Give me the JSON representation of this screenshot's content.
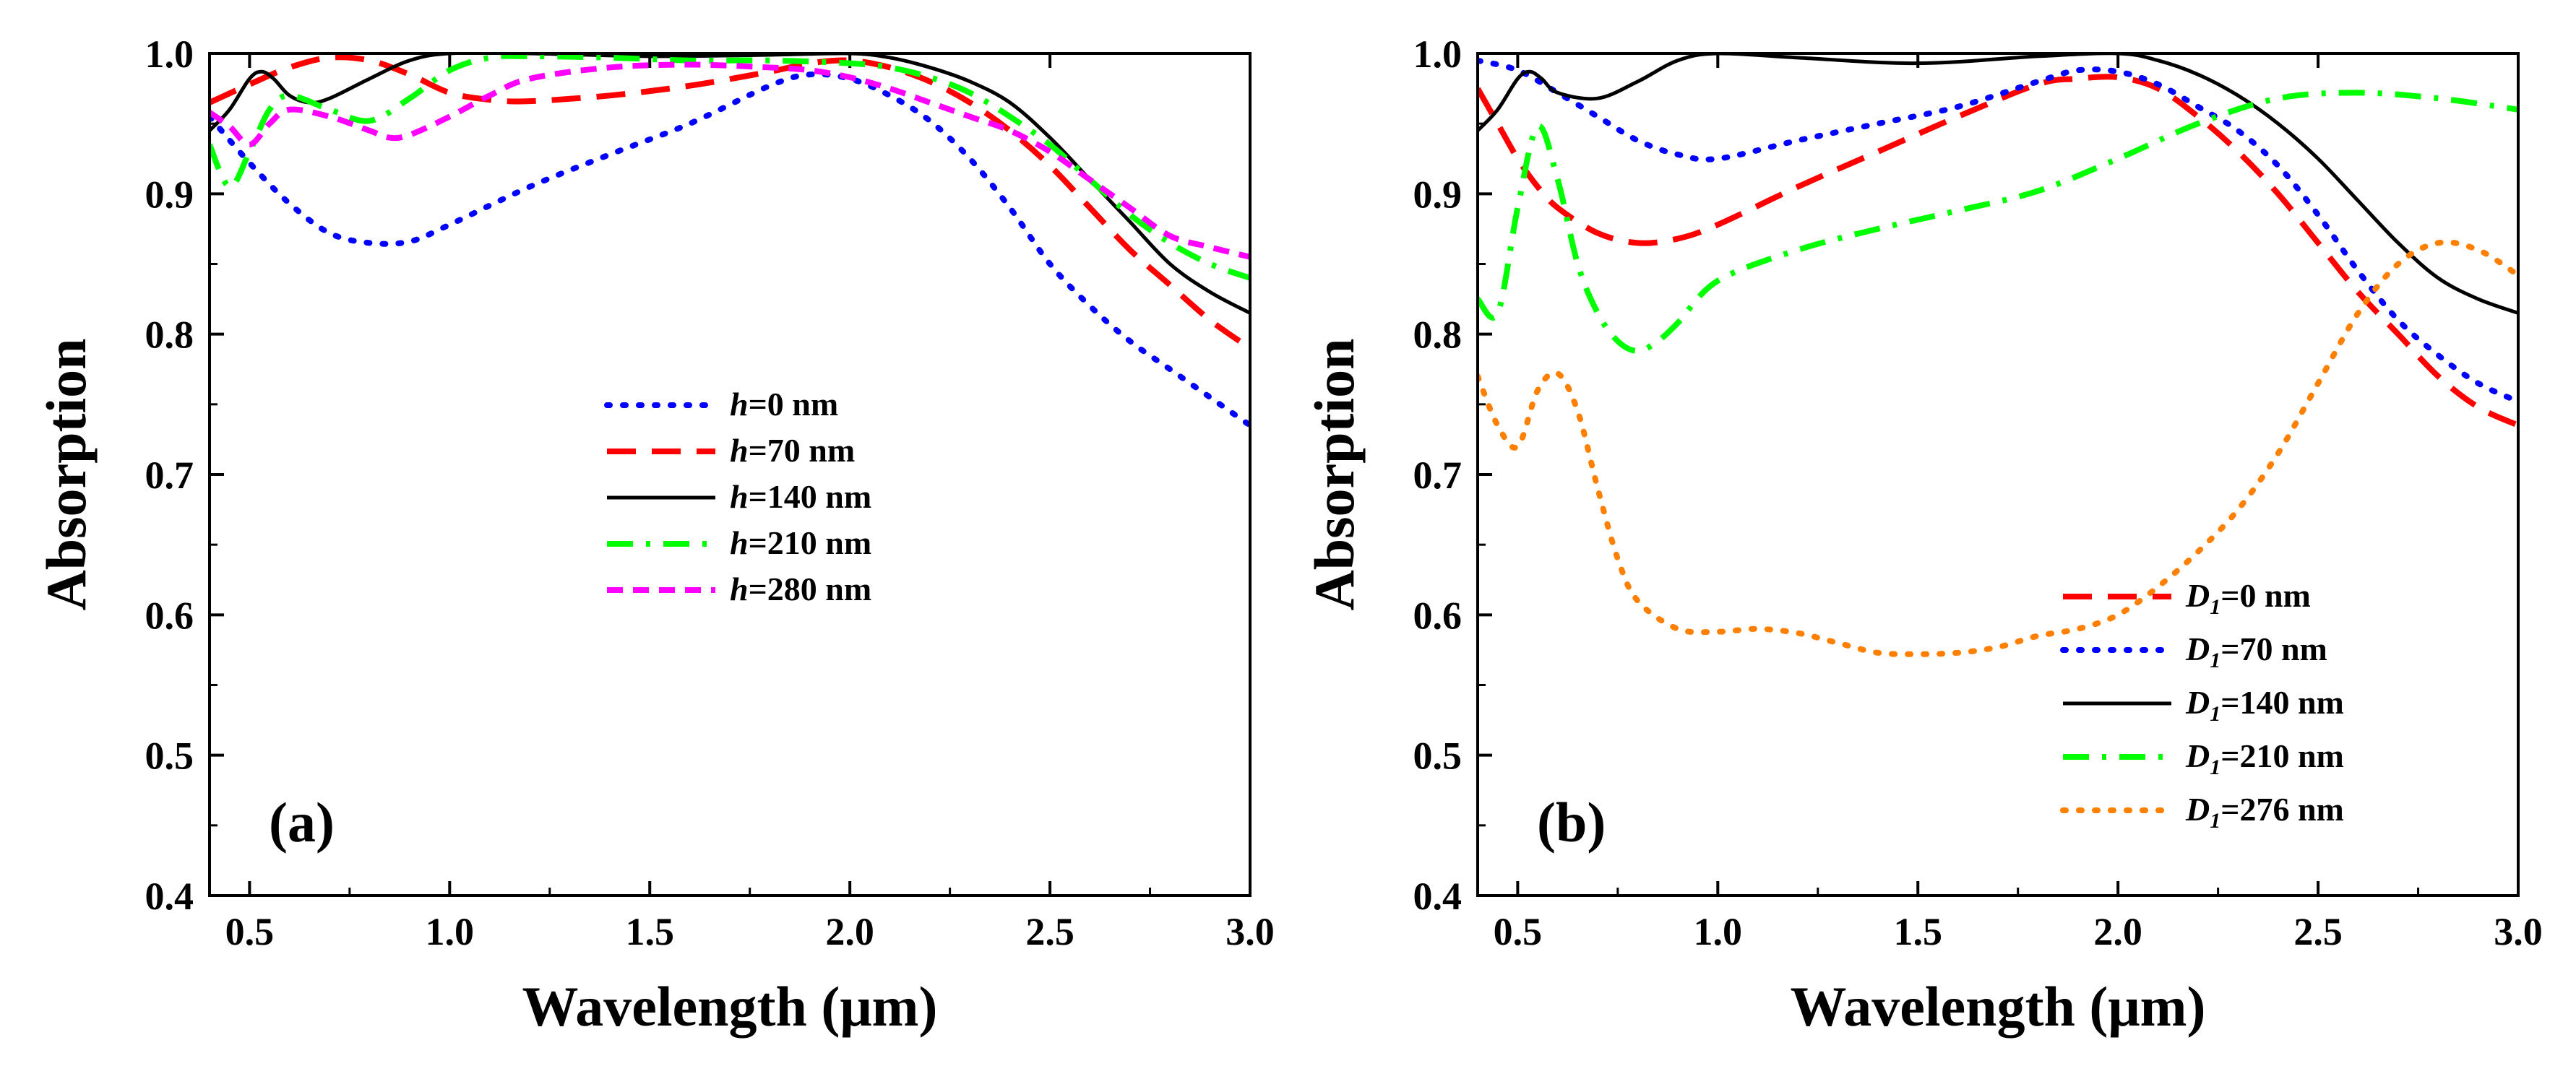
{
  "chart_data": [
    {
      "type": "line",
      "panel_label": "(a)",
      "xlabel": "Wavelength (μm)",
      "ylabel": "Absorption",
      "xlim": [
        0.4,
        3.0
      ],
      "ylim": [
        0.4,
        1.0
      ],
      "xticks": [
        0.5,
        1.0,
        1.5,
        2.0,
        2.5,
        3.0
      ],
      "xtick_labels": [
        "0.5",
        "1.0",
        "1.5",
        "2.0",
        "2.5",
        "3.0"
      ],
      "yticks": [
        0.4,
        0.5,
        0.6,
        0.7,
        0.8,
        0.9,
        1.0
      ],
      "ytick_labels": [
        "0.4",
        "0.5",
        "0.6",
        "0.7",
        "0.8",
        "0.9",
        "1.0"
      ],
      "legend_position": "center-right",
      "series": [
        {
          "name": "h=0 nm",
          "var": "h",
          "suffix": "=0 nm",
          "color": "#0000ff",
          "style": "dot",
          "x": [
            0.4,
            0.5,
            0.6,
            0.7,
            0.8,
            0.9,
            1.0,
            1.2,
            1.4,
            1.6,
            1.8,
            1.9,
            2.0,
            2.1,
            2.2,
            2.3,
            2.4,
            2.5,
            2.6,
            2.7,
            2.8,
            2.9,
            3.0
          ],
          "y": [
            0.955,
            0.922,
            0.893,
            0.872,
            0.865,
            0.866,
            0.878,
            0.905,
            0.928,
            0.95,
            0.977,
            0.985,
            0.982,
            0.97,
            0.952,
            0.925,
            0.89,
            0.85,
            0.82,
            0.795,
            0.775,
            0.755,
            0.735
          ]
        },
        {
          "name": "h=70 nm",
          "var": "h",
          "suffix": "=70 nm",
          "color": "#ff0000",
          "style": "dash",
          "x": [
            0.4,
            0.5,
            0.6,
            0.7,
            0.8,
            0.9,
            1.0,
            1.1,
            1.2,
            1.4,
            1.6,
            1.8,
            1.9,
            2.0,
            2.1,
            2.2,
            2.3,
            2.4,
            2.5,
            2.6,
            2.7,
            2.8,
            2.9,
            3.0
          ],
          "y": [
            0.965,
            0.978,
            0.99,
            0.997,
            0.995,
            0.985,
            0.972,
            0.967,
            0.966,
            0.97,
            0.977,
            0.987,
            0.993,
            0.995,
            0.99,
            0.98,
            0.965,
            0.945,
            0.92,
            0.89,
            0.86,
            0.835,
            0.81,
            0.79
          ]
        },
        {
          "name": "h=140 nm",
          "var": "h",
          "suffix": "=140 nm",
          "color": "#000000",
          "style": "solid",
          "x": [
            0.4,
            0.45,
            0.5,
            0.53,
            0.56,
            0.6,
            0.65,
            0.7,
            0.8,
            0.9,
            1.0,
            1.2,
            1.5,
            1.8,
            2.0,
            2.1,
            2.2,
            2.3,
            2.4,
            2.5,
            2.6,
            2.7,
            2.8,
            2.9,
            3.0
          ],
          "y": [
            0.945,
            0.96,
            0.982,
            0.987,
            0.982,
            0.97,
            0.965,
            0.968,
            0.982,
            0.995,
            1.0,
            1.0,
            0.998,
            0.999,
            1.0,
            0.997,
            0.99,
            0.98,
            0.965,
            0.94,
            0.91,
            0.88,
            0.85,
            0.83,
            0.815
          ]
        },
        {
          "name": "h=210 nm",
          "var": "h",
          "suffix": "=210 nm",
          "color": "#00ff00",
          "style": "dashdot",
          "x": [
            0.4,
            0.45,
            0.5,
            0.55,
            0.6,
            0.7,
            0.8,
            0.9,
            1.0,
            1.1,
            1.2,
            1.4,
            1.6,
            1.8,
            2.0,
            2.1,
            2.2,
            2.3,
            2.4,
            2.5,
            2.6,
            2.7,
            2.8,
            2.9,
            3.0
          ],
          "y": [
            0.935,
            0.905,
            0.93,
            0.96,
            0.97,
            0.96,
            0.952,
            0.968,
            0.988,
            0.997,
            0.998,
            0.997,
            0.995,
            0.995,
            0.993,
            0.99,
            0.983,
            0.972,
            0.955,
            0.935,
            0.91,
            0.885,
            0.865,
            0.85,
            0.84
          ]
        },
        {
          "name": "h=280 nm",
          "var": "h",
          "suffix": "=280 nm",
          "color": "#ff00ff",
          "style": "shortdash",
          "x": [
            0.4,
            0.45,
            0.5,
            0.55,
            0.6,
            0.7,
            0.8,
            0.85,
            0.9,
            1.0,
            1.1,
            1.2,
            1.4,
            1.6,
            1.8,
            1.9,
            2.0,
            2.1,
            2.2,
            2.3,
            2.4,
            2.5,
            2.6,
            2.7,
            2.8,
            2.9,
            3.0
          ],
          "y": [
            0.958,
            0.948,
            0.935,
            0.95,
            0.96,
            0.955,
            0.945,
            0.94,
            0.942,
            0.955,
            0.97,
            0.982,
            0.99,
            0.992,
            0.99,
            0.988,
            0.983,
            0.975,
            0.965,
            0.955,
            0.945,
            0.93,
            0.91,
            0.89,
            0.87,
            0.862,
            0.855
          ]
        }
      ]
    },
    {
      "type": "line",
      "panel_label": "(b)",
      "xlabel": "Wavelength (μm)",
      "ylabel": "Absorption",
      "xlim": [
        0.4,
        3.0
      ],
      "ylim": [
        0.4,
        1.0
      ],
      "xticks": [
        0.5,
        1.0,
        1.5,
        2.0,
        2.5,
        3.0
      ],
      "xtick_labels": [
        "0.5",
        "1.0",
        "1.5",
        "2.0",
        "2.5",
        "3.0"
      ],
      "yticks": [
        0.4,
        0.5,
        0.6,
        0.7,
        0.8,
        0.9,
        1.0
      ],
      "ytick_labels": [
        "0.4",
        "0.5",
        "0.6",
        "0.7",
        "0.8",
        "0.9",
        "1.0"
      ],
      "legend_position": "bottom-right",
      "series": [
        {
          "name": "D1=0 nm",
          "var": "D",
          "sub": "1",
          "suffix": "=0 nm",
          "color": "#ff0000",
          "style": "dash",
          "x": [
            0.4,
            0.45,
            0.5,
            0.55,
            0.6,
            0.7,
            0.8,
            0.9,
            1.0,
            1.2,
            1.4,
            1.6,
            1.8,
            1.9,
            2.0,
            2.1,
            2.2,
            2.3,
            2.4,
            2.5,
            2.6,
            2.7,
            2.8,
            2.9,
            3.0
          ],
          "y": [
            0.975,
            0.95,
            0.925,
            0.905,
            0.89,
            0.872,
            0.865,
            0.868,
            0.878,
            0.905,
            0.93,
            0.955,
            0.978,
            0.982,
            0.983,
            0.975,
            0.955,
            0.93,
            0.9,
            0.865,
            0.83,
            0.8,
            0.77,
            0.748,
            0.735
          ]
        },
        {
          "name": "D1=70 nm",
          "var": "D",
          "sub": "1",
          "suffix": "=70 nm",
          "color": "#0000ff",
          "style": "dot",
          "x": [
            0.4,
            0.5,
            0.6,
            0.7,
            0.8,
            0.9,
            1.0,
            1.2,
            1.4,
            1.6,
            1.8,
            1.9,
            2.0,
            2.1,
            2.2,
            2.3,
            2.4,
            2.5,
            2.6,
            2.7,
            2.8,
            2.9,
            3.0
          ],
          "y": [
            0.995,
            0.988,
            0.972,
            0.955,
            0.938,
            0.928,
            0.925,
            0.938,
            0.95,
            0.962,
            0.98,
            0.988,
            0.987,
            0.978,
            0.962,
            0.945,
            0.92,
            0.885,
            0.845,
            0.81,
            0.785,
            0.765,
            0.752
          ]
        },
        {
          "name": "D1=140 nm",
          "var": "D",
          "sub": "1",
          "suffix": "=140 nm",
          "color": "#000000",
          "style": "solid",
          "x": [
            0.4,
            0.45,
            0.5,
            0.53,
            0.56,
            0.6,
            0.7,
            0.8,
            0.9,
            1.0,
            1.2,
            1.5,
            1.8,
            2.0,
            2.1,
            2.2,
            2.3,
            2.4,
            2.5,
            2.6,
            2.7,
            2.8,
            2.9,
            3.0
          ],
          "y": [
            0.945,
            0.96,
            0.982,
            0.987,
            0.982,
            0.972,
            0.968,
            0.98,
            0.995,
            1.0,
            0.997,
            0.993,
            0.998,
            1.0,
            0.995,
            0.985,
            0.97,
            0.95,
            0.925,
            0.895,
            0.865,
            0.84,
            0.825,
            0.815
          ]
        },
        {
          "name": "D1=210 nm",
          "var": "D",
          "sub": "1",
          "suffix": "=210 nm",
          "color": "#00ff00",
          "style": "dashdot",
          "x": [
            0.4,
            0.45,
            0.5,
            0.55,
            0.6,
            0.65,
            0.7,
            0.75,
            0.8,
            0.85,
            0.9,
            1.0,
            1.2,
            1.4,
            1.6,
            1.8,
            2.0,
            2.2,
            2.4,
            2.6,
            2.8,
            3.0
          ],
          "y": [
            0.825,
            0.815,
            0.89,
            0.948,
            0.91,
            0.85,
            0.815,
            0.795,
            0.788,
            0.795,
            0.808,
            0.838,
            0.86,
            0.875,
            0.888,
            0.902,
            0.925,
            0.95,
            0.968,
            0.972,
            0.968,
            0.96
          ]
        },
        {
          "name": "D1=276 nm",
          "var": "D",
          "sub": "1",
          "suffix": "=276 nm",
          "color": "#ff8000",
          "style": "dot",
          "x": [
            0.4,
            0.45,
            0.5,
            0.55,
            0.6,
            0.65,
            0.7,
            0.75,
            0.8,
            0.9,
            1.0,
            1.1,
            1.2,
            1.3,
            1.4,
            1.5,
            1.6,
            1.7,
            1.8,
            1.9,
            2.0,
            2.1,
            2.2,
            2.3,
            2.4,
            2.5,
            2.6,
            2.7,
            2.8,
            2.9,
            3.0
          ],
          "y": [
            0.77,
            0.735,
            0.72,
            0.76,
            0.772,
            0.745,
            0.69,
            0.64,
            0.61,
            0.59,
            0.588,
            0.59,
            0.587,
            0.58,
            0.573,
            0.572,
            0.573,
            0.577,
            0.585,
            0.59,
            0.6,
            0.62,
            0.645,
            0.675,
            0.715,
            0.765,
            0.815,
            0.85,
            0.865,
            0.86,
            0.842
          ]
        }
      ]
    }
  ]
}
